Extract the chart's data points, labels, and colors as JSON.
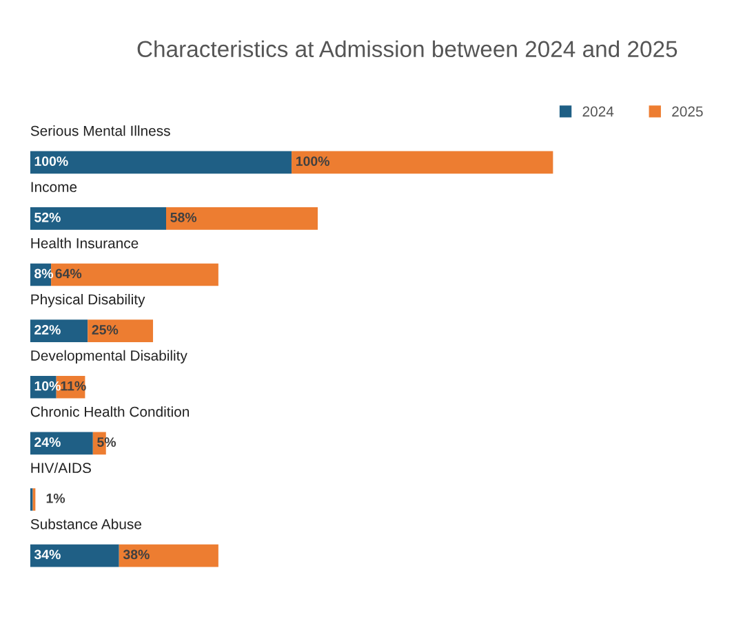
{
  "chart_data": {
    "type": "bar",
    "orientation": "horizontal",
    "stacked": true,
    "title": "Characteristics at Admission between 2024 and 2025",
    "categories": [
      "Serious Mental Illness",
      "Income",
      "Health Insurance",
      "Physical Disability",
      "Developmental Disability",
      "Chronic Health Condition",
      "HIV/AIDS",
      "Substance Abuse"
    ],
    "series": [
      {
        "name": "2024",
        "color": "#1f5f85",
        "values": [
          100,
          52,
          8,
          22,
          10,
          24,
          1,
          34
        ],
        "value_labels": [
          "100%",
          "52%",
          "8%",
          "22%",
          "10%",
          "24%",
          null,
          "34%"
        ]
      },
      {
        "name": "2025",
        "color": "#ed7d31",
        "values": [
          100,
          58,
          64,
          25,
          11,
          5,
          1,
          38
        ],
        "value_labels": [
          "100%",
          "58%",
          "64%",
          "25%",
          "11%",
          "5%",
          "1%",
          "38%"
        ]
      }
    ],
    "legend": "top right"
  }
}
